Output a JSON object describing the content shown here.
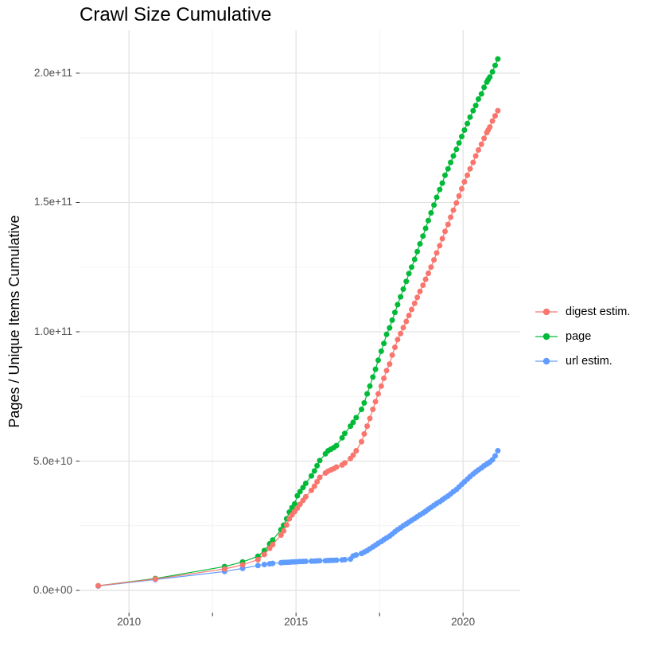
{
  "title": "Crawl Size Cumulative",
  "y_axis": {
    "label": "Pages / Unique Items Cumulative",
    "tick_labels": [
      "0.0e+00",
      "5.0e+10",
      "1.0e+11",
      "1.5e+11",
      "2.0e+11"
    ],
    "tick_values_e9": [
      0,
      50,
      100,
      150,
      200
    ],
    "minor_values_e9": [
      25,
      75,
      125,
      175
    ]
  },
  "x_axis": {
    "tick_labels": [
      "2010",
      "2015",
      "2020"
    ],
    "tick_values": [
      2010,
      2015,
      2020
    ],
    "minor_values": [
      2012.5,
      2017.5
    ]
  },
  "legend": {
    "items": [
      {
        "label": "digest estim.",
        "color": "#F8766D"
      },
      {
        "label": "page",
        "color": "#00BA38"
      },
      {
        "label": "url estim.",
        "color": "#619CFF"
      }
    ]
  },
  "colors": {
    "background": "#ffffff",
    "grid_major": "#e3e3e3",
    "grid_minor": "#efefef",
    "tick_mark": "#333333",
    "tick_text": "#4d4d4d",
    "digest": "#F8766D",
    "page": "#00BA38",
    "url": "#619CFF"
  },
  "chart_data": {
    "type": "line",
    "title": "Crawl Size Cumulative",
    "xlabel": "",
    "ylabel": "Pages / Unique Items Cumulative",
    "value_unit_multiplier": 1000000000.0,
    "render_xlim": [
      2008.52,
      2021.71
    ],
    "render_ylim_e9": [
      -8.6,
      216.6
    ],
    "grid": true,
    "legend_position": "right",
    "x_years": [
      2009.08,
      2010.79,
      2012.86,
      2013.4,
      2013.86,
      2014.05,
      2014.21,
      2014.3,
      2014.55,
      2014.63,
      2014.72,
      2014.8,
      2014.88,
      2014.96,
      2015.04,
      2015.12,
      2015.21,
      2015.29,
      2015.46,
      2015.55,
      2015.63,
      2015.71,
      2015.88,
      2015.96,
      2016.04,
      2016.13,
      2016.21,
      2016.38,
      2016.46,
      2016.63,
      2016.71,
      2016.8,
      2016.96,
      2017.04,
      2017.13,
      2017.21,
      2017.3,
      2017.38,
      2017.46,
      2017.55,
      2017.63,
      2017.71,
      2017.8,
      2017.88,
      2017.96,
      2018.04,
      2018.13,
      2018.21,
      2018.3,
      2018.38,
      2018.46,
      2018.55,
      2018.63,
      2018.71,
      2018.8,
      2018.88,
      2018.96,
      2019.04,
      2019.13,
      2019.21,
      2019.3,
      2019.38,
      2019.46,
      2019.55,
      2019.63,
      2019.71,
      2019.8,
      2019.88,
      2019.96,
      2020.04,
      2020.13,
      2020.21,
      2020.3,
      2020.38,
      2020.46,
      2020.55,
      2020.63,
      2020.71,
      2020.75,
      2020.8,
      2020.88,
      2020.96,
      2021.04
    ],
    "series": [
      {
        "name": "digest estim.",
        "color": "#F8766D",
        "values_e9": [
          1.8,
          4.4,
          8.3,
          9.9,
          11.9,
          13.9,
          16.3,
          17.7,
          21.4,
          23.0,
          25.3,
          27.7,
          29.2,
          30.5,
          31.8,
          33.3,
          34.8,
          36.2,
          38.7,
          40.3,
          42.0,
          43.7,
          45.4,
          46.1,
          46.6,
          47.1,
          47.7,
          48.5,
          49.3,
          51.0,
          52.3,
          54.0,
          57.5,
          60.5,
          63.5,
          66.5,
          70.0,
          73.0,
          76.0,
          79.0,
          82.0,
          85.0,
          87.5,
          91.0,
          94.0,
          97.0,
          99.3,
          101.6,
          104.0,
          106.3,
          108.6,
          111.0,
          113.3,
          115.6,
          118.0,
          120.3,
          122.6,
          125.0,
          127.8,
          130.5,
          133.3,
          136.0,
          138.8,
          141.5,
          144.3,
          147.0,
          149.8,
          152.5,
          155.3,
          158.0,
          160.5,
          163.0,
          165.5,
          168.0,
          170.3,
          172.5,
          174.8,
          177.0,
          178.0,
          179.2,
          181.5,
          183.5,
          185.5
        ]
      },
      {
        "name": "page",
        "color": "#00BA38",
        "values_e9": [
          1.8,
          4.6,
          9.2,
          11.0,
          13.2,
          15.4,
          18.0,
          19.5,
          23.5,
          25.2,
          27.7,
          30.3,
          32.0,
          33.5,
          36.6,
          38.2,
          39.8,
          41.4,
          44.3,
          46.2,
          48.2,
          50.2,
          52.8,
          54.0,
          54.6,
          55.2,
          56.0,
          59.0,
          60.7,
          63.5,
          65.0,
          66.8,
          70.0,
          72.5,
          76.0,
          79.0,
          82.5,
          85.5,
          89.0,
          92.5,
          95.5,
          99.0,
          101.5,
          104.5,
          107.5,
          110.5,
          113.5,
          116.5,
          119.5,
          122.5,
          125.0,
          128.0,
          131.0,
          134.0,
          137.0,
          140.0,
          143.0,
          146.0,
          149.0,
          152.0,
          155.0,
          157.5,
          160.5,
          163.0,
          165.5,
          168.0,
          170.5,
          173.0,
          175.5,
          178.0,
          180.5,
          183.0,
          185.5,
          187.5,
          190.0,
          192.0,
          194.5,
          196.5,
          197.5,
          198.5,
          200.5,
          203.0,
          205.5
        ]
      },
      {
        "name": "url estim.",
        "color": "#619CFF",
        "values_e9": [
          1.7,
          4.2,
          7.3,
          8.5,
          9.6,
          10.0,
          10.3,
          10.45,
          10.7,
          10.8,
          10.85,
          10.9,
          11.0,
          11.05,
          11.1,
          11.15,
          11.2,
          11.25,
          11.3,
          11.35,
          11.4,
          11.45,
          11.5,
          11.55,
          11.6,
          11.65,
          11.7,
          11.8,
          11.9,
          12.1,
          13.3,
          13.7,
          14.3,
          14.8,
          15.4,
          16.1,
          16.8,
          17.5,
          18.2,
          18.9,
          19.6,
          20.3,
          21.0,
          21.8,
          22.7,
          23.5,
          24.2,
          25.0,
          25.7,
          26.4,
          27.1,
          27.8,
          28.5,
          29.2,
          29.9,
          30.6,
          31.4,
          32.1,
          32.9,
          33.6,
          34.3,
          35.0,
          35.8,
          36.5,
          37.3,
          38.2,
          39.0,
          40.0,
          41.0,
          42.0,
          43.0,
          44.0,
          45.0,
          45.8,
          46.6,
          47.4,
          48.2,
          48.8,
          49.2,
          49.6,
          50.5,
          52.0,
          54.0
        ]
      }
    ]
  }
}
